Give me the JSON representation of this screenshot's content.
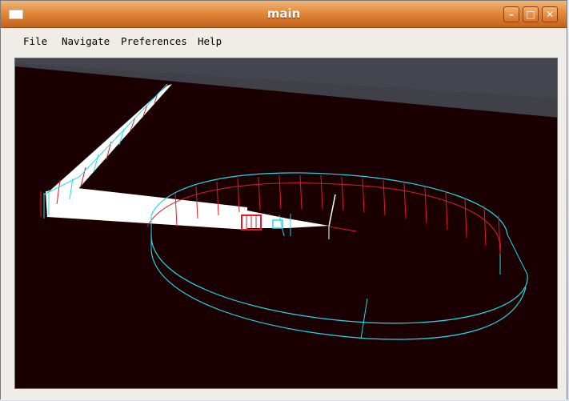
{
  "window": {
    "title": "main",
    "controls": {
      "minimize": "–",
      "maximize": "□",
      "close": "✕"
    }
  },
  "menubar": {
    "items": [
      {
        "label": "File"
      },
      {
        "label": "Navigate"
      },
      {
        "label": "Preferences"
      },
      {
        "label": "Help"
      }
    ]
  },
  "viewport": {
    "background_color": "#1b0002",
    "sky_color": "#404048",
    "wire_color_cyan": "#25d8e6",
    "wire_color_red": "#e01a2a",
    "path_color": "#ffffff"
  }
}
